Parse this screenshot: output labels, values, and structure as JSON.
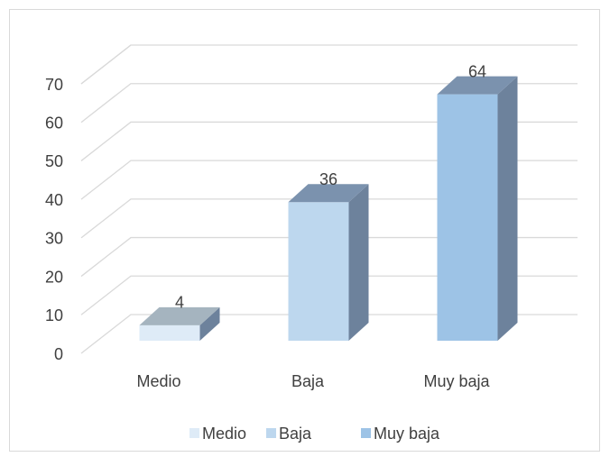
{
  "chart_data": {
    "type": "bar3d",
    "categories": [
      "Medio",
      "Baja",
      "Muy baja"
    ],
    "values": [
      4,
      36,
      64
    ],
    "colors": [
      "#deebf7",
      "#bdd7ee",
      "#9dc3e6"
    ],
    "ylim": [
      0,
      70
    ],
    "yticks": [
      0,
      10,
      20,
      30,
      40,
      50,
      60,
      70
    ],
    "grid": true,
    "legend": "bottom"
  }
}
